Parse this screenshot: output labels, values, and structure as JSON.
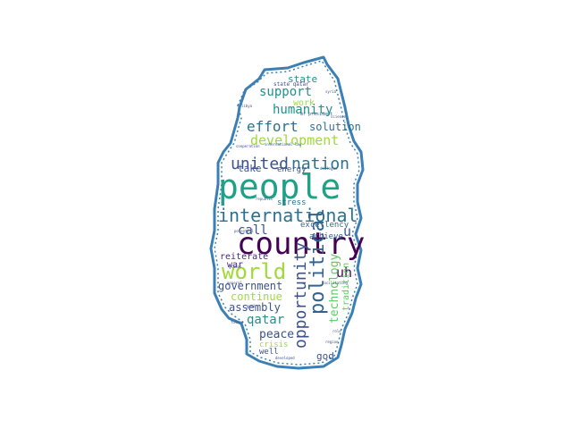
{
  "outline_color": "#3b7fb5",
  "words": [
    {
      "text": "people",
      "color": "#1fa187",
      "weight": 100
    },
    {
      "text": "country",
      "color": "#440154",
      "weight": 92
    },
    {
      "text": "international",
      "color": "#2c728e",
      "weight": 52
    },
    {
      "text": "world",
      "color": "#a0da39",
      "weight": 62
    },
    {
      "text": "political",
      "color": "#33638d",
      "weight": 55
    },
    {
      "text": "united",
      "color": "#3b528b",
      "weight": 45
    },
    {
      "text": "nation",
      "color": "#2c728e",
      "weight": 45
    },
    {
      "text": "opportunity",
      "color": "#3b528b",
      "weight": 40
    },
    {
      "text": "development",
      "color": "#a0da39",
      "weight": 36
    },
    {
      "text": "effort",
      "color": "#2c728e",
      "weight": 36
    },
    {
      "text": "humanity",
      "color": "#21918c",
      "weight": 30
    },
    {
      "text": "support",
      "color": "#21918c",
      "weight": 30
    },
    {
      "text": "uh",
      "color": "#440154",
      "weight": 33
    },
    {
      "text": "technology",
      "color": "#5ec962",
      "weight": 27
    },
    {
      "text": "call",
      "color": "#3b528b",
      "weight": 28
    },
    {
      "text": "qatar",
      "color": "#21918c",
      "weight": 27
    },
    {
      "text": "peace",
      "color": "#3b528b",
      "weight": 27
    },
    {
      "text": "solution",
      "color": "#2c728e",
      "weight": 25
    },
    {
      "text": "government",
      "color": "#3b528b",
      "weight": 24
    },
    {
      "text": "continue",
      "color": "#a0da39",
      "weight": 24
    },
    {
      "text": "assembly",
      "color": "#3b528b",
      "weight": 24
    },
    {
      "text": "state",
      "color": "#21918c",
      "weight": 22
    },
    {
      "text": "take",
      "color": "#3b528b",
      "weight": 22
    },
    {
      "text": "tradition",
      "color": "#5ec962",
      "weight": 20
    },
    {
      "text": "god",
      "color": "#3b528b",
      "weight": 22
    },
    {
      "text": "work",
      "color": "#a0da39",
      "weight": 17
    },
    {
      "text": "energy",
      "color": "#3b528b",
      "weight": 18
    },
    {
      "text": "stress",
      "color": "#2c728e",
      "weight": 18
    },
    {
      "text": "excellency",
      "color": "#2c728e",
      "weight": 18
    },
    {
      "text": "achieve",
      "color": "#3b528b",
      "weight": 18
    },
    {
      "text": "reiterate",
      "color": "#482878",
      "weight": 18
    },
    {
      "text": "war",
      "color": "#482878",
      "weight": 17
    },
    {
      "text": "crisis",
      "color": "#a0da39",
      "weight": 16
    },
    {
      "text": "well",
      "color": "#3b528b",
      "weight": 18
    },
    {
      "text": "u",
      "color": "#3b528b",
      "weight": 18
    },
    {
      "text": "state qatar",
      "color": "#3b528b",
      "weight": 9
    },
    {
      "text": "mr president",
      "color": "#3b528b",
      "weight": 8
    },
    {
      "text": "international law",
      "color": "#3b528b",
      "weight": 7
    },
    {
      "text": "cooperation",
      "color": "#3b528b",
      "weight": 7
    },
    {
      "text": "dialogue",
      "color": "#3b528b",
      "weight": 7
    },
    {
      "text": "republic",
      "color": "#3b528b",
      "weight": 7
    },
    {
      "text": "facilitating",
      "color": "#3b528b",
      "weight": 7
    },
    {
      "text": "developed",
      "color": "#3b528b",
      "weight": 7
    },
    {
      "text": "syria",
      "color": "#3b528b",
      "weight": 6
    },
    {
      "text": "libya",
      "color": "#3b528b",
      "weight": 6
    },
    {
      "text": "science",
      "color": "#3b528b",
      "weight": 6
    },
    {
      "text": "potential",
      "color": "#3b528b",
      "weight": 6
    },
    {
      "text": "general",
      "color": "#3b528b",
      "weight": 6
    },
    {
      "text": "future",
      "color": "#3b528b",
      "weight": 6
    },
    {
      "text": "global",
      "color": "#3b528b",
      "weight": 6
    },
    {
      "text": "role",
      "color": "#3b528b",
      "weight": 6
    },
    {
      "text": "region",
      "color": "#3b528b",
      "weight": 6
    },
    {
      "text": "goal",
      "color": "#3b528b",
      "weight": 6
    }
  ]
}
